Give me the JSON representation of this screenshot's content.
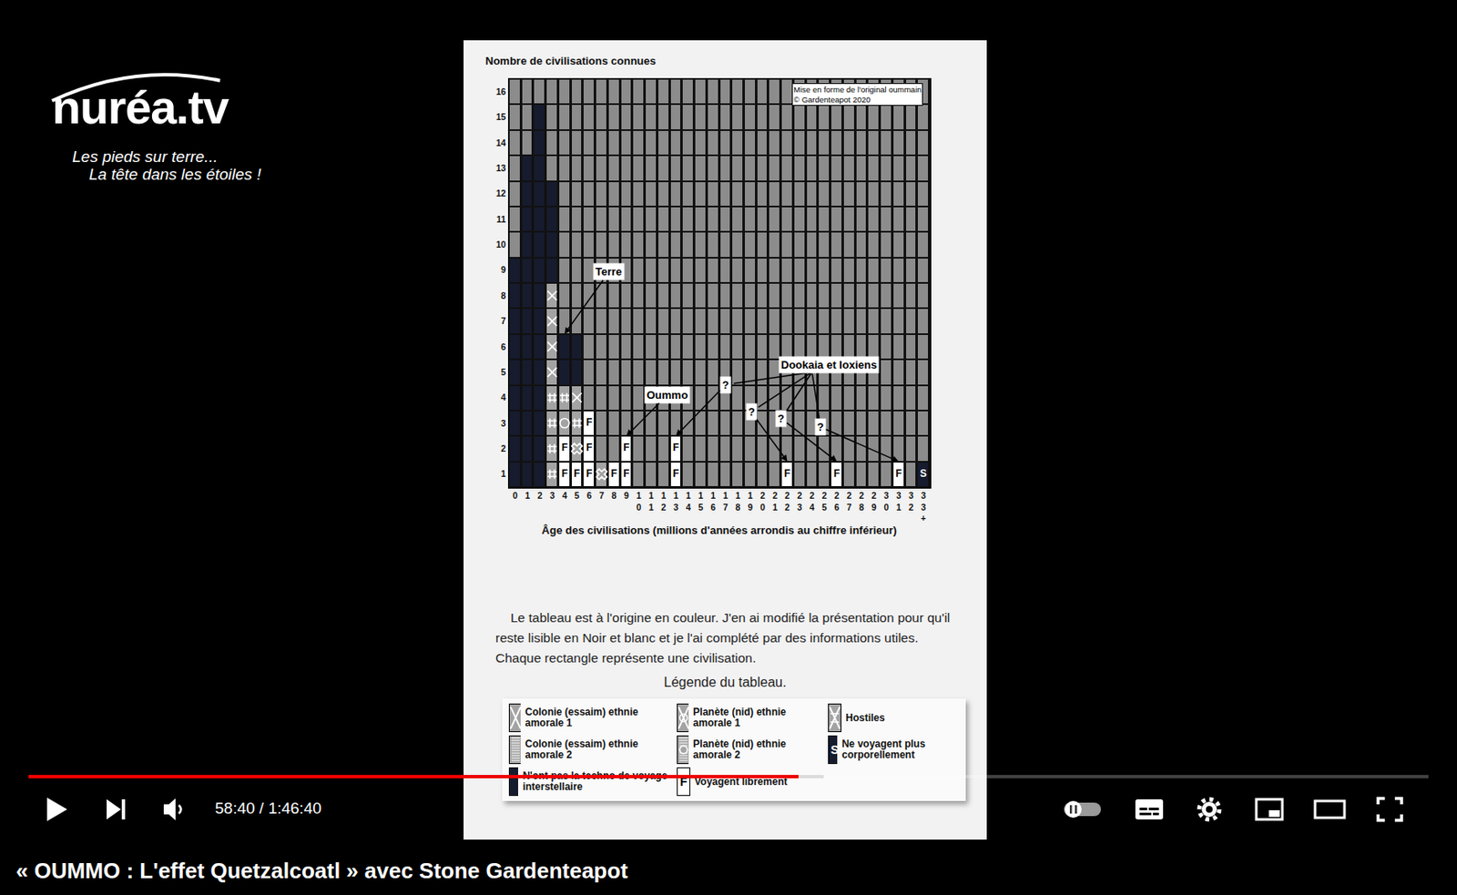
{
  "screen": {
    "logo": {
      "name": "nuréa.tv",
      "tagline": [
        "Les pieds sur terre...",
        "La tête dans les étoiles !"
      ]
    },
    "player": {
      "time": "58:40 / 1:46:40"
    },
    "video_title": "« OUMMO : L'effet Quetzalcoatl » avec Stone Gardenteapot"
  },
  "page": {
    "caption": "Le tableau est à l'origine en couleur. J'en ai modifié la présentation pour qu'il reste lisible en Noir et blanc et je l'ai complété par des informations utiles. Chaque rectangle représente une civilisation.",
    "legend_title": "Légende du tableau."
  },
  "chart_data": {
    "type": "heatmap",
    "x_title": "Âge des civilisations (millions d'années arrondis au chiffre inférieur)",
    "y_title": "Nombre de civilisations connues",
    "note": [
      "Mise en forme de l'original oummain",
      "© Gardenteapot 2020"
    ],
    "categories": [
      "0",
      "1",
      "2",
      "3",
      "4",
      "5",
      "6",
      "7",
      "8",
      "9",
      "10",
      "11",
      "12",
      "13",
      "14",
      "15",
      "16",
      "17",
      "18",
      "19",
      "20",
      "21",
      "22",
      "23",
      "24",
      "25",
      "26",
      "27",
      "28",
      "29",
      "30",
      "31",
      "32",
      "33+"
    ],
    "ylim": [
      0.5,
      16.5
    ],
    "yticks": [
      1,
      2,
      3,
      4,
      5,
      6,
      7,
      8,
      9,
      10,
      11,
      12,
      13,
      14,
      15,
      16
    ],
    "color": "#8c8c8c",
    "grid": true,
    "legend": "bottom",
    "series": [
      {
        "name": "Colonie (essaim) ethnie amorale 1",
        "color": "#a3a3a3",
        "marker": "x-thin",
        "cells": [
          [
            "3",
            5
          ],
          [
            "3",
            6
          ],
          [
            "3",
            7
          ],
          [
            "3",
            8
          ],
          [
            "5",
            4
          ]
        ]
      },
      {
        "name": "Colonie (essaim) ethnie amorale 2",
        "color": "#a3a3a3",
        "marker": "hash",
        "cells": [
          [
            "3",
            1
          ],
          [
            "3",
            2
          ],
          [
            "3",
            3
          ],
          [
            "3",
            4
          ],
          [
            "4",
            4
          ],
          [
            "5",
            3
          ]
        ]
      },
      {
        "name": "N'ont pas la techno de voyage interstellaire",
        "color": "#161b2e",
        "cells": [
          [
            "0",
            1
          ],
          [
            "0",
            2
          ],
          [
            "0",
            3
          ],
          [
            "0",
            4
          ],
          [
            "0",
            5
          ],
          [
            "0",
            6
          ],
          [
            "0",
            7
          ],
          [
            "0",
            8
          ],
          [
            "0",
            9
          ],
          [
            "1",
            1
          ],
          [
            "1",
            2
          ],
          [
            "1",
            3
          ],
          [
            "1",
            4
          ],
          [
            "1",
            5
          ],
          [
            "1",
            6
          ],
          [
            "1",
            7
          ],
          [
            "1",
            8
          ],
          [
            "1",
            9
          ],
          [
            "1",
            10
          ],
          [
            "1",
            11
          ],
          [
            "1",
            12
          ],
          [
            "1",
            13
          ],
          [
            "2",
            1
          ],
          [
            "2",
            2
          ],
          [
            "2",
            3
          ],
          [
            "2",
            4
          ],
          [
            "2",
            5
          ],
          [
            "2",
            6
          ],
          [
            "2",
            7
          ],
          [
            "2",
            8
          ],
          [
            "2",
            9
          ],
          [
            "2",
            10
          ],
          [
            "2",
            11
          ],
          [
            "2",
            12
          ],
          [
            "2",
            13
          ],
          [
            "2",
            14
          ],
          [
            "2",
            15
          ],
          [
            "3",
            9
          ],
          [
            "3",
            10
          ],
          [
            "3",
            11
          ],
          [
            "3",
            12
          ],
          [
            "4",
            5
          ],
          [
            "4",
            6
          ],
          [
            "5",
            5
          ],
          [
            "5",
            6
          ]
        ]
      },
      {
        "name": "Planète (nid) ethnie amorale 1",
        "color": "#a3a3a3",
        "marker": "circle-x-open",
        "cells": []
      },
      {
        "name": "Planète (nid) ethnie amorale 2",
        "color": "#a3a3a3",
        "marker": "circle-open",
        "cells": [
          [
            "4",
            3
          ]
        ]
      },
      {
        "name": "Voyagent librement",
        "color": "#ffffff",
        "text": "F",
        "cells": [
          [
            "4",
            1
          ],
          [
            "4",
            2
          ],
          [
            "5",
            1
          ],
          [
            "6",
            1
          ],
          [
            "6",
            2
          ],
          [
            "6",
            3
          ],
          [
            "8",
            1
          ],
          [
            "9",
            1
          ],
          [
            "9",
            2
          ],
          [
            "13",
            1
          ],
          [
            "13",
            2
          ],
          [
            "22",
            1
          ],
          [
            "26",
            1
          ],
          [
            "31",
            1
          ]
        ]
      },
      {
        "name": "Hostiles",
        "color": "#a3a3a3",
        "marker": "x-open",
        "cells": [
          [
            "5",
            2
          ],
          [
            "7",
            1
          ]
        ]
      },
      {
        "name": "Ne voyagent plus corporellement",
        "color": "#161b2e",
        "text": "S",
        "cells": [
          [
            "33+",
            1
          ]
        ]
      }
    ],
    "callouts": [
      {
        "text": "Terre",
        "target": [
          "4",
          6.5
        ]
      },
      {
        "text": "Oummo",
        "target": [
          "9",
          2.5
        ]
      },
      {
        "text": "Dookaia et Ioxiens",
        "links": [
          {
            "text": "?",
            "target": [
              "13",
              2.5
            ]
          },
          {
            "text": "?",
            "target": [
              "22",
              1.5
            ]
          },
          {
            "text": "?",
            "target": [
              "26",
              1.5
            ]
          },
          {
            "text": "?",
            "target": [
              "31",
              1.5
            ]
          }
        ]
      }
    ]
  }
}
